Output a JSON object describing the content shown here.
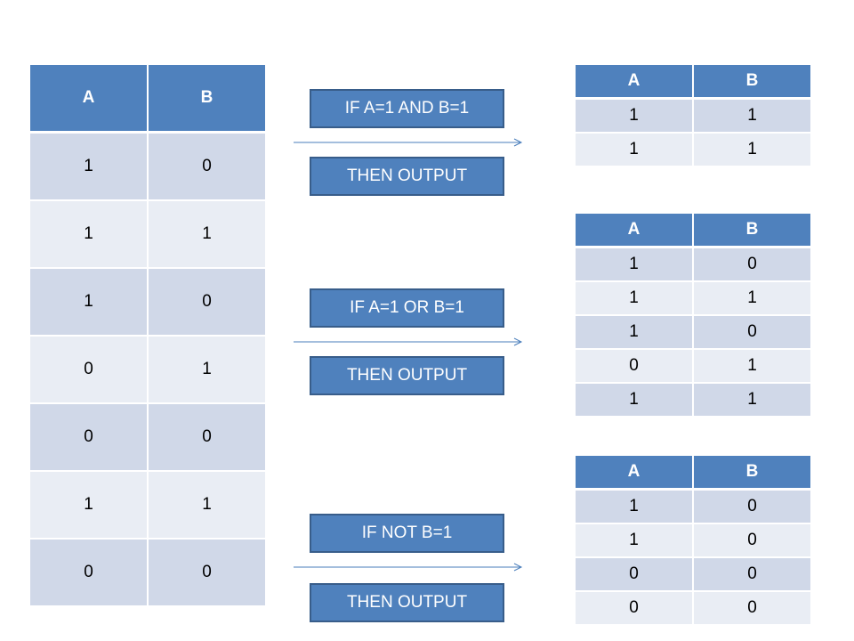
{
  "input_table": {
    "headers": [
      "A",
      "B"
    ],
    "rows": [
      [
        "1",
        "0"
      ],
      [
        "1",
        "1"
      ],
      [
        "1",
        "0"
      ],
      [
        "0",
        "1"
      ],
      [
        "0",
        "0"
      ],
      [
        "1",
        "1"
      ],
      [
        "0",
        "0"
      ]
    ]
  },
  "rules": [
    {
      "condition": "IF A=1 AND B=1",
      "action": "THEN OUTPUT",
      "output": {
        "headers": [
          "A",
          "B"
        ],
        "rows": [
          [
            "1",
            "1"
          ],
          [
            "1",
            "1"
          ]
        ]
      }
    },
    {
      "condition": "IF A=1 OR B=1",
      "action": "THEN OUTPUT",
      "output": {
        "headers": [
          "A",
          "B"
        ],
        "rows": [
          [
            "1",
            "0"
          ],
          [
            "1",
            "1"
          ],
          [
            "1",
            "0"
          ],
          [
            "0",
            "1"
          ],
          [
            "1",
            "1"
          ]
        ]
      }
    },
    {
      "condition": "IF NOT B=1",
      "action": "THEN OUTPUT",
      "output": {
        "headers": [
          "A",
          "B"
        ],
        "rows": [
          [
            "1",
            "0"
          ],
          [
            "1",
            "0"
          ],
          [
            "0",
            "0"
          ],
          [
            "0",
            "0"
          ]
        ]
      }
    }
  ],
  "colors": {
    "header_fill": "#4f81bd",
    "row_dark": "#d0d8e8",
    "row_light": "#e9edf4",
    "box_border": "#385d8a",
    "arrow": "#4a7ebb"
  }
}
